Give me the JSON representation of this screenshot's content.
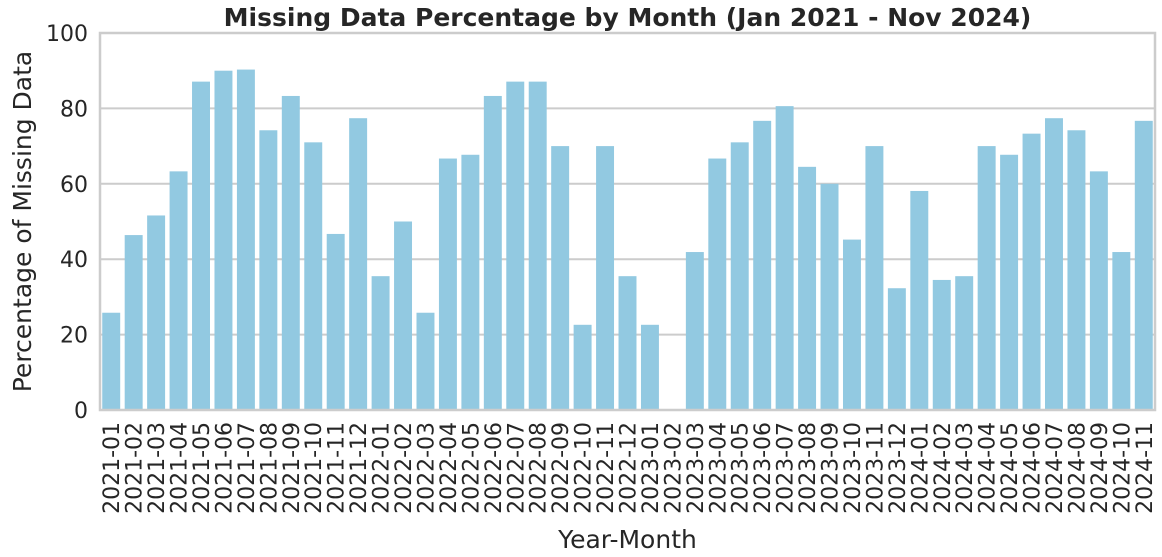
{
  "chart_data": {
    "type": "bar",
    "title": "Missing Data Percentage by Month (Jan 2021 - Nov 2024)",
    "xlabel": "Year-Month",
    "ylabel": "Percentage of Missing Data",
    "ylim": [
      0,
      100
    ],
    "yticks": [
      0,
      20,
      40,
      60,
      80,
      100
    ],
    "grid": true,
    "bar_color": "#92c9e1",
    "categories": [
      "2021-01",
      "2021-02",
      "2021-03",
      "2021-04",
      "2021-05",
      "2021-06",
      "2021-07",
      "2021-08",
      "2021-09",
      "2021-10",
      "2021-11",
      "2021-12",
      "2022-01",
      "2022-02",
      "2022-03",
      "2022-04",
      "2022-05",
      "2022-06",
      "2022-07",
      "2022-08",
      "2022-09",
      "2022-10",
      "2022-11",
      "2022-12",
      "2023-01",
      "2023-02",
      "2023-03",
      "2023-04",
      "2023-05",
      "2023-06",
      "2023-07",
      "2023-08",
      "2023-09",
      "2023-10",
      "2023-11",
      "2023-12",
      "2024-01",
      "2024-02",
      "2024-03",
      "2024-04",
      "2024-05",
      "2024-06",
      "2024-07",
      "2024-08",
      "2024-09",
      "2024-10",
      "2024-11"
    ],
    "values": [
      25.8,
      46.4,
      51.6,
      63.3,
      87.1,
      90.0,
      90.3,
      74.2,
      83.3,
      71.0,
      46.7,
      77.4,
      35.5,
      50.0,
      25.8,
      66.7,
      67.7,
      83.3,
      87.1,
      87.1,
      70.0,
      22.6,
      70.0,
      35.5,
      22.6,
      0,
      41.9,
      66.7,
      71.0,
      76.7,
      80.6,
      64.5,
      60.0,
      45.2,
      70.0,
      32.3,
      58.1,
      34.5,
      35.5,
      70.0,
      67.7,
      73.3,
      77.4,
      74.2,
      63.3,
      41.9,
      76.7
    ]
  }
}
